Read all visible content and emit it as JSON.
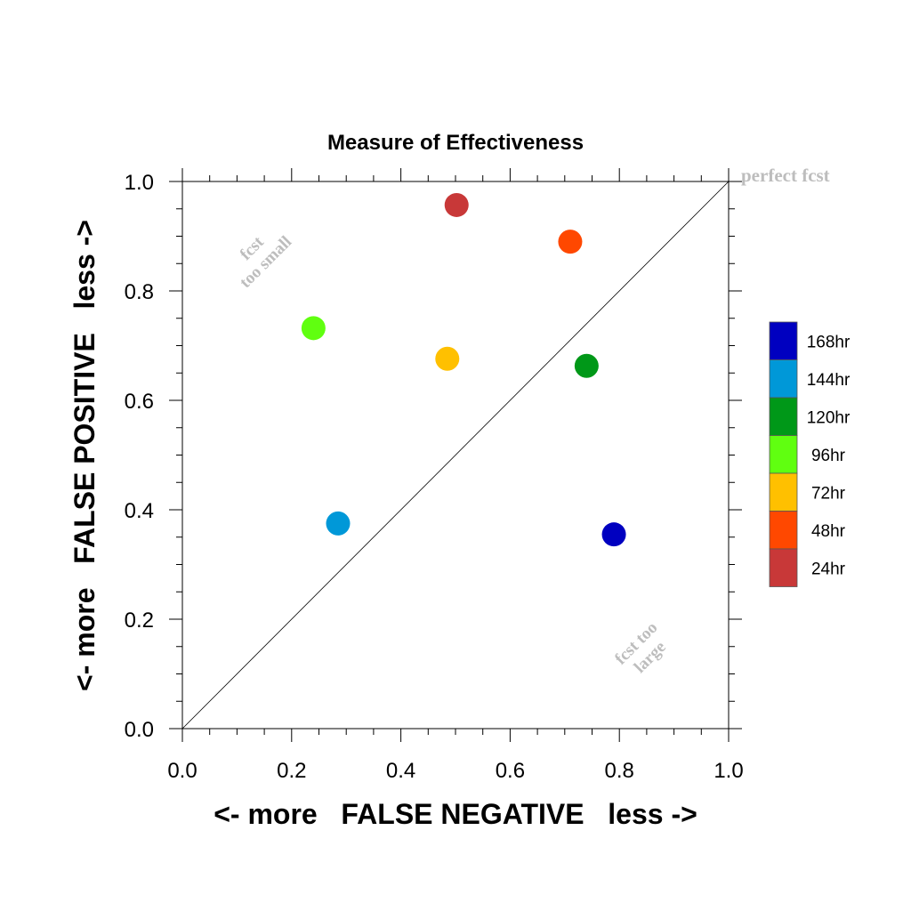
{
  "chart_data": {
    "type": "scatter",
    "title": "Measure of Effectiveness",
    "xlabel": "<- more   FALSE NEGATIVE   less ->",
    "ylabel": "<- more   FALSE POSITIVE   less ->",
    "xlim": [
      0.0,
      1.0
    ],
    "ylim": [
      0.0,
      1.0
    ],
    "x_ticks": [
      "0.0",
      "0.2",
      "0.4",
      "0.6",
      "0.8",
      "1.0"
    ],
    "y_ticks": [
      "0.0",
      "0.2",
      "0.4",
      "0.6",
      "0.8",
      "1.0"
    ],
    "grid": false,
    "reference_line": {
      "from": [
        0.0,
        0.0
      ],
      "to": [
        1.0,
        1.0
      ]
    },
    "annotations": {
      "perfect": "perfect fcst",
      "too_small_1": "fcst",
      "too_small_2": "too small",
      "too_large_1": "fcst too",
      "too_large_2": "large"
    },
    "legend_position": "right",
    "series": [
      {
        "name": "168hr",
        "color": "#0000c0",
        "x": 0.79,
        "y": 0.355
      },
      {
        "name": "144hr",
        "color": "#0098d8",
        "x": 0.285,
        "y": 0.375
      },
      {
        "name": "120hr",
        "color": "#009818",
        "x": 0.74,
        "y": 0.663
      },
      {
        "name": "96hr",
        "color": "#60ff10",
        "x": 0.24,
        "y": 0.732
      },
      {
        "name": "72hr",
        "color": "#ffc000",
        "x": 0.485,
        "y": 0.676
      },
      {
        "name": "48hr",
        "color": "#ff4800",
        "x": 0.71,
        "y": 0.89
      },
      {
        "name": "24hr",
        "color": "#c83838",
        "x": 0.502,
        "y": 0.957
      }
    ]
  }
}
